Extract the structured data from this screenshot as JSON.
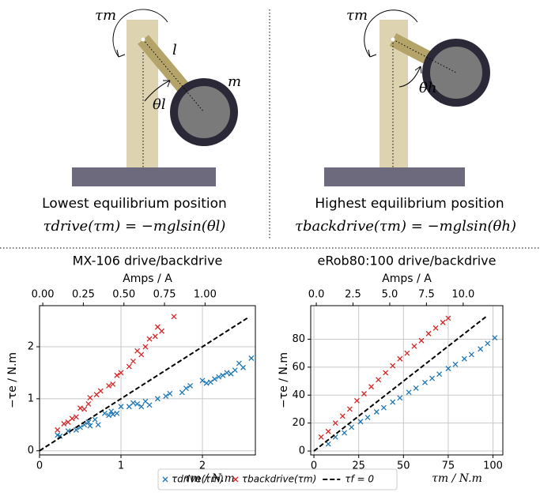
{
  "diagrams": [
    {
      "torque": "τm",
      "length": "l",
      "mass": "m",
      "angle": "θl",
      "caption": "Lowest equilibrium position",
      "formula": "τdrive(τm) = −mglsin(θl)",
      "formula_color": "#2f7ab8"
    },
    {
      "torque": "τm",
      "angle": "θh",
      "caption": "Highest equilibrium position",
      "formula": "τbackdrive(τm) = −mglsin(θh)",
      "formula_color": "#d62728"
    }
  ],
  "chart_data": [
    {
      "type": "scatter",
      "title": "MX-106 drive/backdrive",
      "xlabel": "τm / N.m",
      "ylabel": "−τe / N.m",
      "x2label": "Amps / A",
      "xlim": [
        0,
        2.65
      ],
      "ylim": [
        -0.08,
        2.79
      ],
      "xticks": [
        0,
        1,
        2
      ],
      "yticks": [
        0,
        1,
        2
      ],
      "x2lim": [
        -0.02,
        1.31
      ],
      "x2ticks": [
        {
          "value": 0,
          "label": "0.00"
        },
        {
          "value": 0.25,
          "label": "0.25"
        },
        {
          "value": 0.5,
          "label": "0.50"
        },
        {
          "value": 0.75,
          "label": "0.75"
        },
        {
          "value": 1,
          "label": "1.00"
        }
      ],
      "grid": true,
      "legend": "bottom",
      "series": [
        {
          "name": "τdrive(τm)",
          "color": "#1f77b4",
          "marker": "x",
          "x": [
            0.22,
            0.25,
            0.35,
            0.45,
            0.5,
            0.55,
            0.6,
            0.62,
            0.68,
            0.72,
            0.8,
            0.85,
            0.88,
            0.9,
            0.95,
            1.0,
            1.1,
            1.15,
            1.2,
            1.25,
            1.3,
            1.35,
            1.45,
            1.55,
            1.6,
            1.75,
            1.8,
            1.85,
            2.0,
            2.05,
            2.1,
            2.15,
            2.2,
            2.25,
            2.3,
            2.35,
            2.4,
            2.45,
            2.5,
            2.6
          ],
          "values": [
            0.3,
            0.28,
            0.38,
            0.4,
            0.45,
            0.5,
            0.55,
            0.48,
            0.6,
            0.5,
            0.72,
            0.68,
            0.76,
            0.7,
            0.72,
            0.85,
            0.85,
            0.92,
            0.9,
            0.85,
            0.95,
            0.88,
            1.0,
            1.05,
            1.1,
            1.12,
            1.2,
            1.25,
            1.35,
            1.3,
            1.32,
            1.38,
            1.42,
            1.45,
            1.5,
            1.48,
            1.55,
            1.68,
            1.6,
            1.78
          ]
        },
        {
          "name": "τbackdrive(τm)",
          "color": "#d62728",
          "marker": "x",
          "x": [
            0.22,
            0.3,
            0.35,
            0.4,
            0.45,
            0.5,
            0.55,
            0.6,
            0.62,
            0.7,
            0.75,
            0.85,
            0.9,
            0.95,
            1.0,
            1.1,
            1.15,
            1.2,
            1.25,
            1.3,
            1.35,
            1.42,
            1.45,
            1.5,
            1.65
          ],
          "values": [
            0.4,
            0.52,
            0.55,
            0.62,
            0.65,
            0.82,
            0.8,
            0.9,
            1.02,
            1.08,
            1.15,
            1.25,
            1.28,
            1.45,
            1.5,
            1.62,
            1.72,
            1.92,
            1.85,
            2.0,
            2.15,
            2.2,
            2.38,
            2.3,
            2.58
          ]
        },
        {
          "name": "τf = 0",
          "color": "#000000",
          "style": "dashed",
          "x": [
            0,
            2.55
          ],
          "values": [
            0,
            2.55
          ]
        }
      ]
    },
    {
      "type": "scatter",
      "title": "eRob80:100 drive/backdrive",
      "xlabel": "τm / N.m",
      "ylabel": "−τe / N.m",
      "x2label": "Amps / A",
      "xlim": [
        -1.8,
        105.5
      ],
      "ylim": [
        -2.8,
        104
      ],
      "xticks": [
        0,
        25,
        50,
        75,
        100
      ],
      "yticks": [
        0,
        20,
        40,
        60,
        80
      ],
      "x2lim": [
        -0.38,
        12.7
      ],
      "x2ticks": [
        {
          "value": 0,
          "label": "0.0"
        },
        {
          "value": 2.5,
          "label": "2.5"
        },
        {
          "value": 5,
          "label": "5.0"
        },
        {
          "value": 7.5,
          "label": "7.5"
        },
        {
          "value": 10,
          "label": "10.0"
        }
      ],
      "grid": true,
      "series": [
        {
          "name": "τdrive(τm)",
          "color": "#1f77b4",
          "marker": "x",
          "x": [
            8,
            12,
            17,
            21,
            26,
            30,
            35,
            39,
            44,
            48,
            53,
            57,
            62,
            66,
            70,
            75,
            79,
            84,
            88,
            93,
            97,
            101
          ],
          "values": [
            5,
            10,
            13,
            17,
            21,
            24,
            28,
            31,
            35,
            38,
            42,
            45,
            49,
            52,
            55,
            59,
            62,
            66,
            69,
            73,
            77,
            81
          ]
        },
        {
          "name": "τbackdrive(τm)",
          "color": "#d62728",
          "marker": "x",
          "x": [
            4,
            8,
            12,
            16,
            20,
            24,
            28,
            32,
            36,
            40,
            44,
            48,
            52,
            56,
            60,
            64,
            68,
            72,
            75
          ],
          "values": [
            10,
            14,
            20,
            25,
            30,
            36,
            41,
            46,
            51,
            56,
            61,
            66,
            70,
            75,
            79,
            84,
            88,
            92,
            95
          ]
        },
        {
          "name": "τf = 0",
          "color": "#000000",
          "style": "dashed",
          "x": [
            0,
            96
          ],
          "values": [
            0,
            96
          ]
        }
      ]
    }
  ]
}
